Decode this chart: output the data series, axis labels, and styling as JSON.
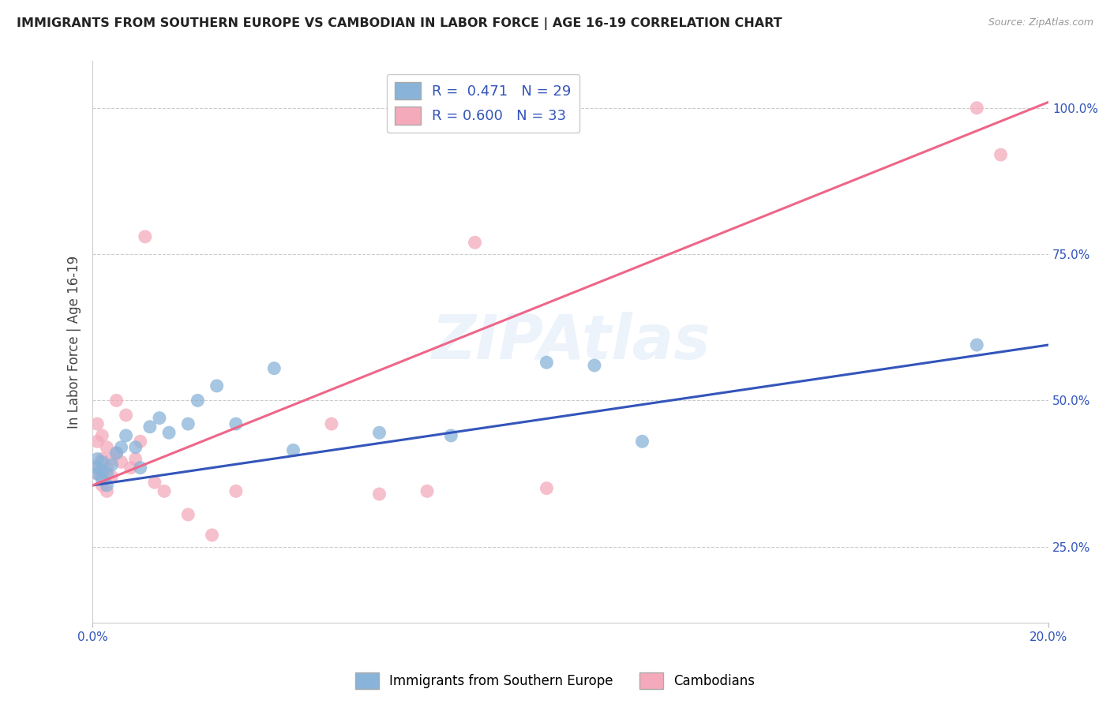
{
  "title": "IMMIGRANTS FROM SOUTHERN EUROPE VS CAMBODIAN IN LABOR FORCE | AGE 16-19 CORRELATION CHART",
  "source_text": "Source: ZipAtlas.com",
  "ylabel": "In Labor Force | Age 16-19",
  "xlim": [
    0.0,
    0.2
  ],
  "ylim": [
    0.12,
    1.08
  ],
  "yticks": [
    0.25,
    0.5,
    0.75,
    1.0
  ],
  "ytick_labels": [
    "25.0%",
    "50.0%",
    "75.0%",
    "100.0%"
  ],
  "xtick_labels": [
    "0.0%",
    "20.0%"
  ],
  "legend_r_blue": "0.471",
  "legend_n_blue": "29",
  "legend_r_pink": "0.600",
  "legend_n_pink": "33",
  "blue_color": "#89B3D9",
  "pink_color": "#F4AABB",
  "blue_line_color": "#3355BB",
  "pink_line_color": "#EE6688",
  "blue_scatter_x": [
    0.001,
    0.001,
    0.001,
    0.002,
    0.002,
    0.002,
    0.003,
    0.003,
    0.004,
    0.005,
    0.006,
    0.007,
    0.009,
    0.01,
    0.012,
    0.014,
    0.016,
    0.02,
    0.022,
    0.026,
    0.03,
    0.038,
    0.042,
    0.06,
    0.075,
    0.095,
    0.105,
    0.115,
    0.185
  ],
  "blue_scatter_y": [
    0.375,
    0.385,
    0.4,
    0.365,
    0.38,
    0.395,
    0.355,
    0.375,
    0.39,
    0.41,
    0.42,
    0.44,
    0.42,
    0.385,
    0.455,
    0.47,
    0.445,
    0.46,
    0.5,
    0.525,
    0.46,
    0.555,
    0.415,
    0.445,
    0.44,
    0.565,
    0.56,
    0.43,
    0.595
  ],
  "pink_scatter_x": [
    0.001,
    0.001,
    0.001,
    0.001,
    0.002,
    0.002,
    0.002,
    0.002,
    0.003,
    0.003,
    0.003,
    0.004,
    0.004,
    0.005,
    0.005,
    0.006,
    0.007,
    0.008,
    0.009,
    0.01,
    0.011,
    0.013,
    0.015,
    0.02,
    0.025,
    0.03,
    0.05,
    0.06,
    0.07,
    0.08,
    0.095,
    0.185,
    0.19
  ],
  "pink_scatter_y": [
    0.375,
    0.39,
    0.43,
    0.46,
    0.355,
    0.37,
    0.4,
    0.44,
    0.345,
    0.385,
    0.42,
    0.37,
    0.4,
    0.41,
    0.5,
    0.395,
    0.475,
    0.385,
    0.4,
    0.43,
    0.78,
    0.36,
    0.345,
    0.305,
    0.27,
    0.345,
    0.46,
    0.34,
    0.345,
    0.77,
    0.35,
    1.0,
    0.92
  ],
  "blue_line_x": [
    0.0,
    0.2
  ],
  "blue_line_y": [
    0.355,
    0.595
  ],
  "pink_line_x": [
    0.0,
    0.2
  ],
  "pink_line_y": [
    0.355,
    1.01
  ]
}
